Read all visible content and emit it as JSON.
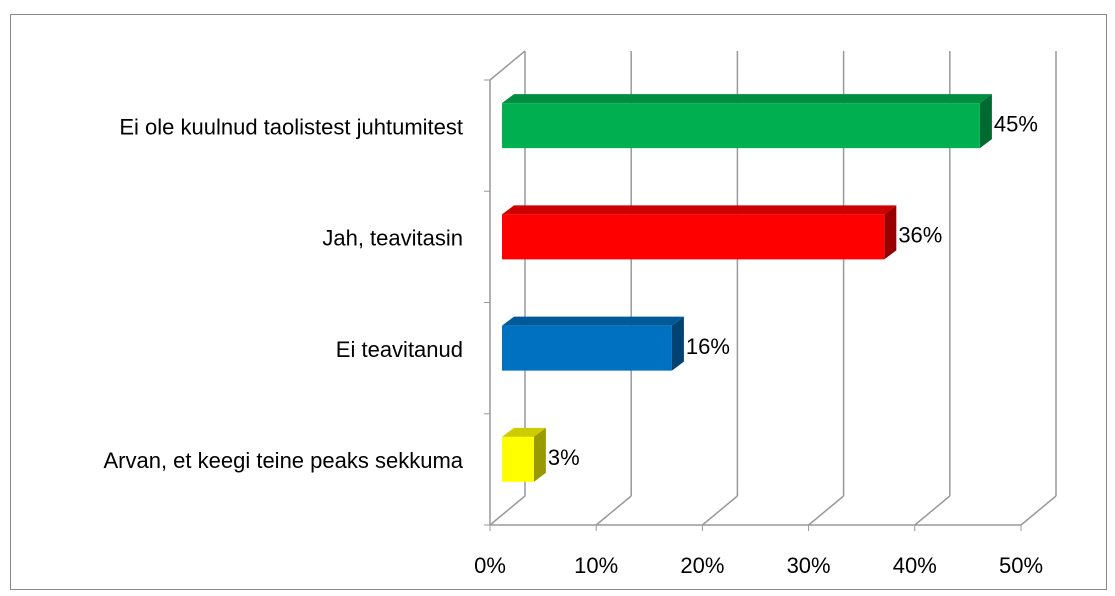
{
  "chart_data": {
    "type": "bar",
    "orientation": "horizontal",
    "three_d": true,
    "categories": [
      "Ei ole kuulnud taolistest juhtumitest",
      "Jah, teavitasin",
      "Ei teavitanud",
      "Arvan, et keegi teine peaks sekkuma"
    ],
    "values": [
      45,
      36,
      16,
      3
    ],
    "value_labels": [
      "45%",
      "36%",
      "16%",
      "3%"
    ],
    "colors": [
      "#00b050",
      "#ff0000",
      "#0070c0",
      "#ffff00"
    ],
    "xlim": [
      0,
      50
    ],
    "xticks": [
      {
        "value": 0,
        "label": "0%"
      },
      {
        "value": 10,
        "label": "10%"
      },
      {
        "value": 20,
        "label": "20%"
      },
      {
        "value": 30,
        "label": "30%"
      },
      {
        "value": 40,
        "label": "40%"
      },
      {
        "value": 50,
        "label": "50%"
      }
    ],
    "grid": true
  }
}
